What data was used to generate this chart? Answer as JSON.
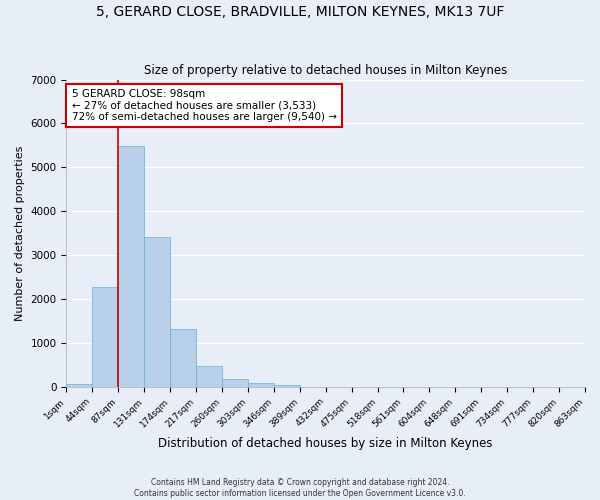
{
  "title": "5, GERARD CLOSE, BRADVILLE, MILTON KEYNES, MK13 7UF",
  "subtitle": "Size of property relative to detached houses in Milton Keynes",
  "xlabel": "Distribution of detached houses by size in Milton Keynes",
  "ylabel": "Number of detached properties",
  "footnote1": "Contains HM Land Registry data © Crown copyright and database right 2024.",
  "footnote2": "Contains public sector information licensed under the Open Government Licence v3.0.",
  "bar_values": [
    75,
    2270,
    5480,
    3420,
    1310,
    480,
    190,
    90,
    50,
    0,
    0,
    0,
    0,
    0,
    0,
    0,
    0,
    0,
    0,
    0
  ],
  "bin_labels": [
    "1sqm",
    "44sqm",
    "87sqm",
    "131sqm",
    "174sqm",
    "217sqm",
    "260sqm",
    "303sqm",
    "346sqm",
    "389sqm",
    "432sqm",
    "475sqm",
    "518sqm",
    "561sqm",
    "604sqm",
    "648sqm",
    "691sqm",
    "734sqm",
    "777sqm",
    "820sqm",
    "863sqm"
  ],
  "bar_color": "#b8d0ea",
  "bar_edgecolor": "#6aaed6",
  "vline_color": "#cc0000",
  "vline_x": 2.0,
  "annotation_text": "5 GERARD CLOSE: 98sqm\n← 27% of detached houses are smaller (3,533)\n72% of semi-detached houses are larger (9,540) →",
  "annotation_box_edgecolor": "#cc0000",
  "ylim": [
    0,
    7000
  ],
  "yticks": [
    0,
    1000,
    2000,
    3000,
    4000,
    5000,
    6000,
    7000
  ],
  "bg_color": "#e8eef7",
  "grid_color": "#ffffff",
  "title_fontsize": 10,
  "subtitle_fontsize": 8.5,
  "ylabel_fontsize": 8,
  "xlabel_fontsize": 8.5,
  "tick_fontsize": 6.5,
  "footnote_fontsize": 5.5
}
